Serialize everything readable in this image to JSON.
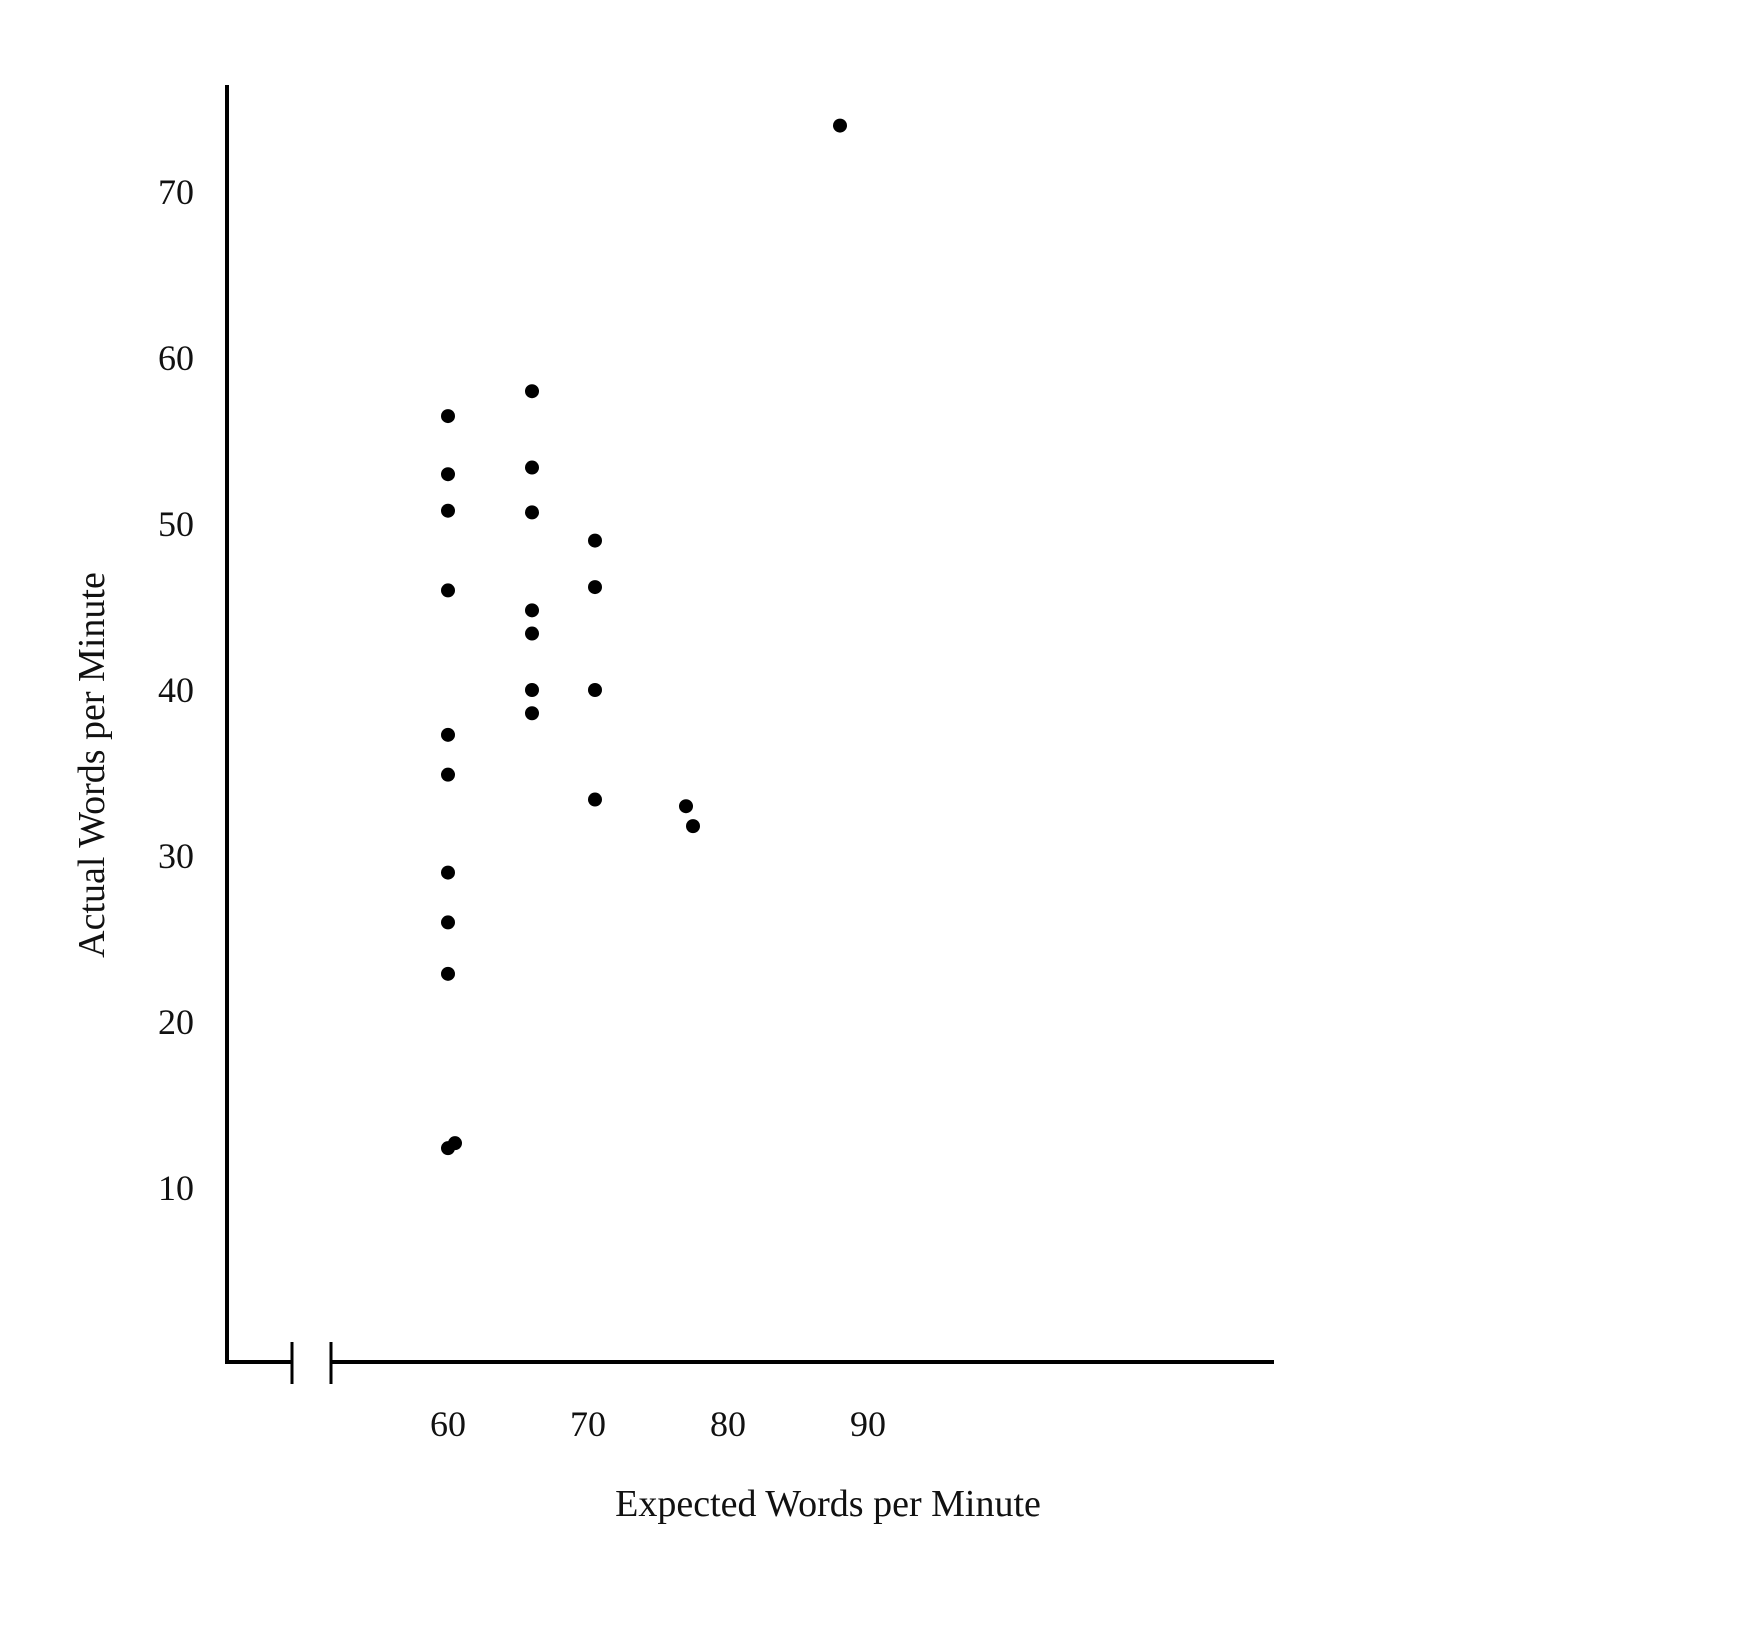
{
  "chart_data": {
    "type": "scatter",
    "xlabel": "Expected Words per Minute",
    "ylabel": "Actual Words per Minute",
    "x_ticks": [
      60,
      70,
      80,
      90
    ],
    "y_ticks": [
      10,
      20,
      30,
      40,
      50,
      60,
      70
    ],
    "xlim": [
      55,
      108
    ],
    "ylim": [
      2,
      76
    ],
    "x_axis_break": true,
    "grid": false,
    "legend": "none",
    "points": [
      {
        "x": 60,
        "y": 56.5
      },
      {
        "x": 60,
        "y": 53
      },
      {
        "x": 60,
        "y": 50.8
      },
      {
        "x": 60,
        "y": 46
      },
      {
        "x": 60,
        "y": 37.3
      },
      {
        "x": 60,
        "y": 34.9
      },
      {
        "x": 60,
        "y": 29
      },
      {
        "x": 60,
        "y": 26
      },
      {
        "x": 60,
        "y": 22.9
      },
      {
        "x": 60,
        "y": 12.4
      },
      {
        "x": 60.5,
        "y": 12.7
      },
      {
        "x": 66,
        "y": 58
      },
      {
        "x": 66,
        "y": 53.4
      },
      {
        "x": 66,
        "y": 50.7
      },
      {
        "x": 66,
        "y": 44.8
      },
      {
        "x": 66,
        "y": 43.4
      },
      {
        "x": 66,
        "y": 40
      },
      {
        "x": 66,
        "y": 38.6
      },
      {
        "x": 70.5,
        "y": 49
      },
      {
        "x": 70.5,
        "y": 46.2
      },
      {
        "x": 70.5,
        "y": 40
      },
      {
        "x": 70.5,
        "y": 33.4
      },
      {
        "x": 77,
        "y": 33
      },
      {
        "x": 77.5,
        "y": 31.8
      },
      {
        "x": 88,
        "y": 74
      }
    ]
  },
  "colors": {
    "background": "#ffffff",
    "ink": "#000000"
  }
}
